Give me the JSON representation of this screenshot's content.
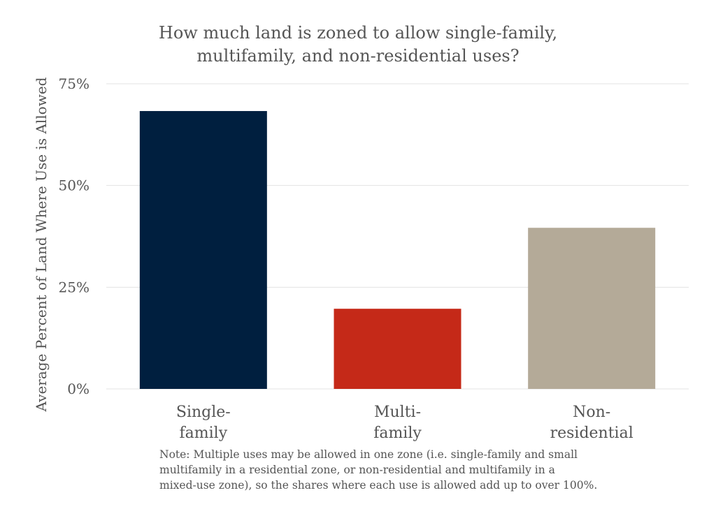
{
  "chart_data": {
    "type": "bar",
    "title_lines": [
      "How much land is zoned to allow single-family,",
      "multifamily, and non-residential uses?"
    ],
    "ylabel": "Average Percent of Land Where Use is Allowed",
    "xlabel": "",
    "ylim": [
      0,
      75
    ],
    "yticks": [
      0,
      25,
      50,
      75
    ],
    "ytick_labels": [
      "0%",
      "25%",
      "50%",
      "75%"
    ],
    "grid": true,
    "categories": [
      {
        "label_lines": [
          "Single-",
          "family"
        ],
        "value": 68.3,
        "color": "#001f3f"
      },
      {
        "label_lines": [
          "Multi-",
          "family"
        ],
        "value": 19.7,
        "color": "#c52918"
      },
      {
        "label_lines": [
          "Non-",
          "residential"
        ],
        "value": 39.6,
        "color": "#b4aa98"
      }
    ],
    "note_lines": [
      "Note: Multiple uses may be allowed in one zone (i.e. single-family and small",
      "multifamily in a residential zone, or non-residential and multifamily in a",
      "mixed-use zone), so the shares where each use is allowed add up to over 100%."
    ]
  }
}
